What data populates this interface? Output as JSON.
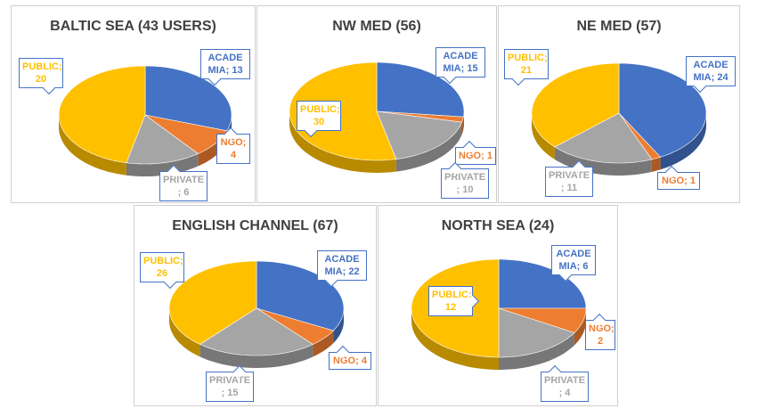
{
  "colors": {
    "academia": "#4472c4",
    "ngo": "#ed7d31",
    "private": "#a5a5a5",
    "public": "#ffc000",
    "title": "#404040",
    "callout_border": "#4472c4"
  },
  "chart_data": [
    {
      "type": "pie",
      "title": "BALTIC SEA (43 USERS)",
      "categories": [
        "ACADEMIA",
        "NGO",
        "PRIVATE",
        "PUBLIC"
      ],
      "values": [
        13,
        4,
        6,
        20
      ],
      "labels": [
        {
          "l1": "ACADE",
          "l2": "MIA; 13"
        },
        {
          "l1": "NGO;",
          "l2": "4"
        },
        {
          "l1": "PRIVATE",
          "l2": "; 6"
        },
        {
          "l1": "PUBLIC;",
          "l2": "20"
        }
      ]
    },
    {
      "type": "pie",
      "title": "NW MED (56)",
      "categories": [
        "ACADEMIA",
        "NGO",
        "PRIVATE",
        "PUBLIC"
      ],
      "values": [
        15,
        1,
        10,
        30
      ],
      "labels": [
        {
          "l1": "ACADE",
          "l2": "MIA; 15"
        },
        {
          "l1": "NGO; 1",
          "l2": ""
        },
        {
          "l1": "PRIVATE",
          "l2": "; 10"
        },
        {
          "l1": "PUBLIC;",
          "l2": "30"
        }
      ]
    },
    {
      "type": "pie",
      "title": "NE MED (57)",
      "categories": [
        "ACADEMIA",
        "NGO",
        "PRIVATE",
        "PUBLIC"
      ],
      "values": [
        24,
        1,
        11,
        21
      ],
      "labels": [
        {
          "l1": "ACADE",
          "l2": "MIA; 24"
        },
        {
          "l1": "NGO; 1",
          "l2": ""
        },
        {
          "l1": "PRIVATE",
          "l2": "; 11"
        },
        {
          "l1": "PUBLIC;",
          "l2": "21"
        }
      ]
    },
    {
      "type": "pie",
      "title": "ENGLISH CHANNEL (67)",
      "categories": [
        "ACADEMIA",
        "NGO",
        "PRIVATE",
        "PUBLIC"
      ],
      "values": [
        22,
        4,
        15,
        26
      ],
      "labels": [
        {
          "l1": "ACADE",
          "l2": "MIA; 22"
        },
        {
          "l1": "NGO; 4",
          "l2": ""
        },
        {
          "l1": "PRIVATE",
          "l2": "; 15"
        },
        {
          "l1": "PUBLIC;",
          "l2": "26"
        }
      ]
    },
    {
      "type": "pie",
      "title": "NORTH SEA (24)",
      "categories": [
        "ACADEMIA",
        "NGO",
        "PRIVATE",
        "PUBLIC"
      ],
      "values": [
        6,
        2,
        4,
        12
      ],
      "labels": [
        {
          "l1": "ACADE",
          "l2": "MIA; 6"
        },
        {
          "l1": "NGO;",
          "l2": "2"
        },
        {
          "l1": "PRIVATE",
          "l2": "; 4"
        },
        {
          "l1": "PUBLIC;",
          "l2": "12"
        }
      ]
    }
  ]
}
